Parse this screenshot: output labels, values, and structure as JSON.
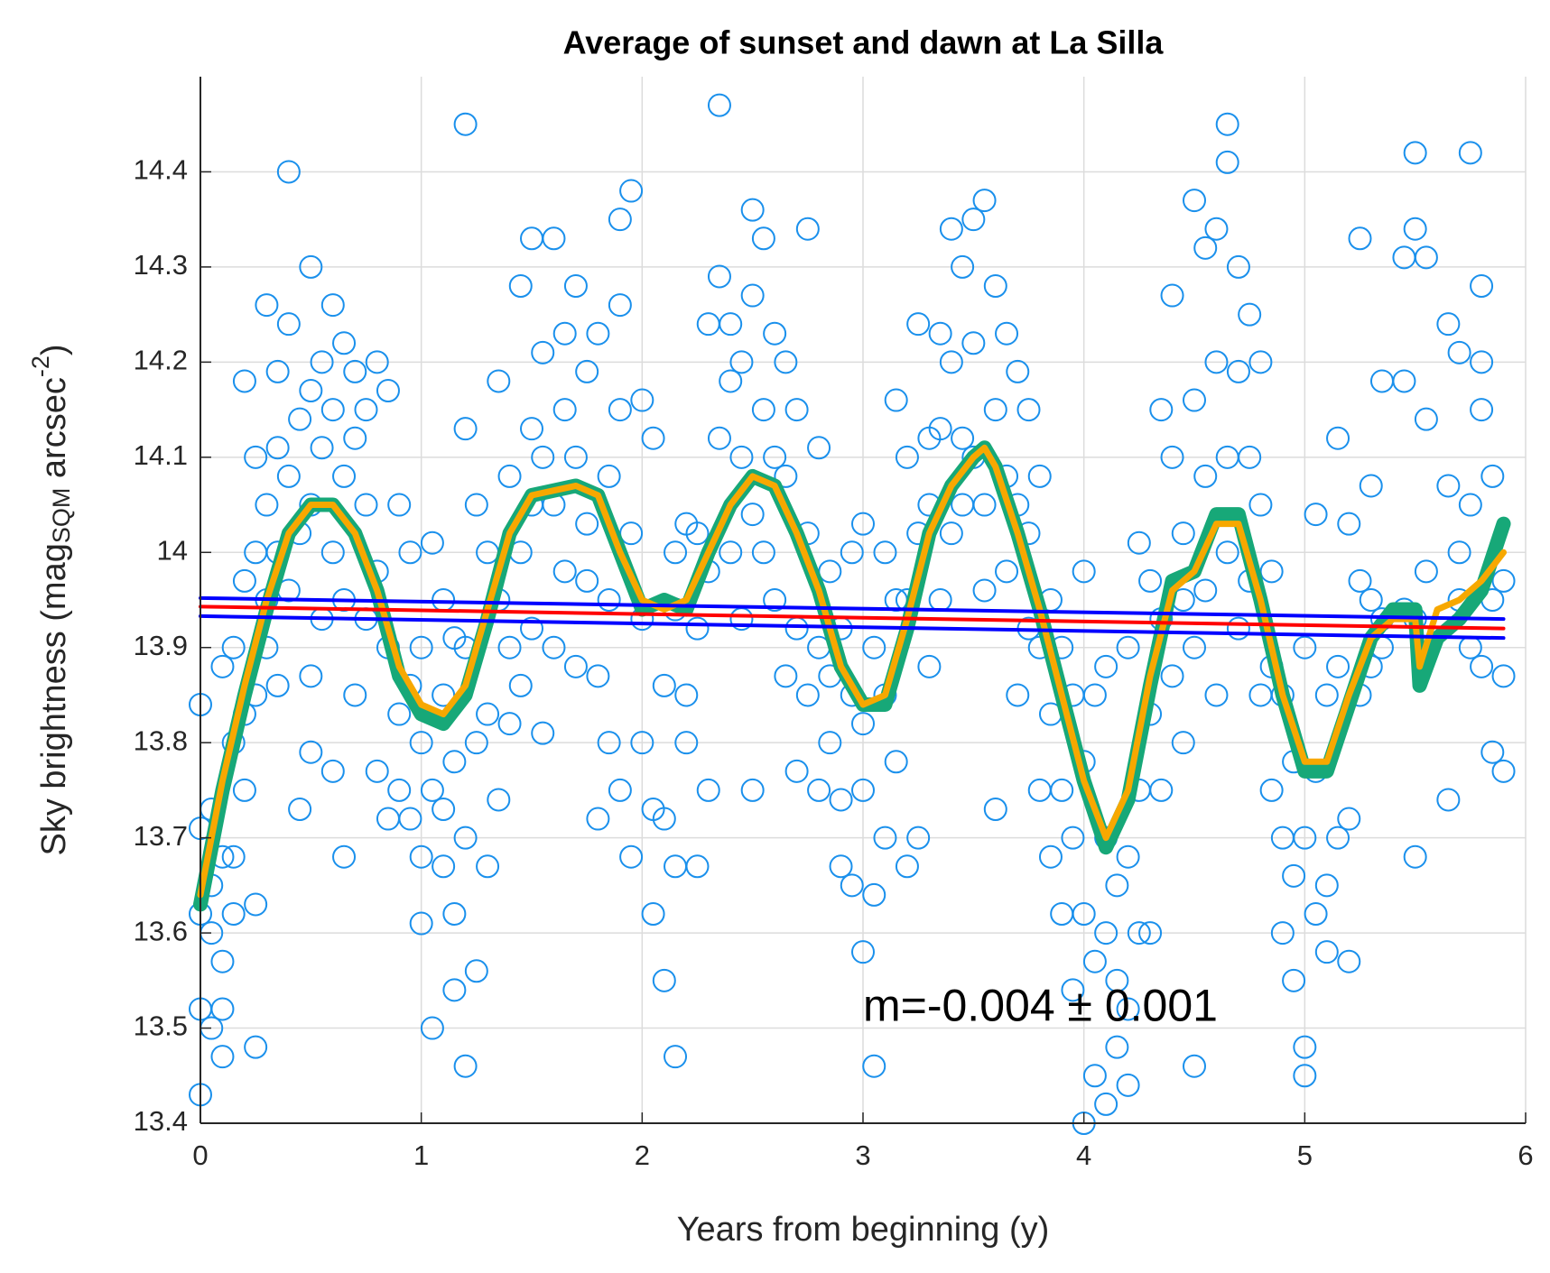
{
  "chart_data": {
    "type": "scatter",
    "title": "Average of sunset and dawn at La Silla",
    "xlabel": "Years from beginning (y)",
    "ylabel": [
      "Sky brightness (mag",
      "SQM",
      " arcsec",
      "-2",
      ")"
    ],
    "annotation": "m=-0.004 ± 0.001",
    "annotation_at": [
      3,
      13.52
    ],
    "xlim": [
      0,
      6
    ],
    "ylim": [
      13.4,
      14.5
    ],
    "xticks": [
      0,
      1,
      2,
      3,
      4,
      5,
      6
    ],
    "yticks": [
      13.4,
      13.5,
      13.6,
      13.7,
      13.8,
      13.9,
      14,
      14.1,
      14.2,
      14.3,
      14.4
    ],
    "grid": true,
    "series": [
      {
        "type": "scatter",
        "color": "#1a90ec",
        "x": [
          0,
          0,
          0,
          0,
          0,
          0.05,
          0.05,
          0.05,
          0.05,
          0.1,
          0.1,
          0.1,
          0.1,
          0.1,
          0.15,
          0.15,
          0.15,
          0.15,
          0.2,
          0.2,
          0.2,
          0.2,
          0.25,
          0.25,
          0.25,
          0.25,
          0.25,
          0.3,
          0.3,
          0.3,
          0.3,
          0.35,
          0.35,
          0.35,
          0.35,
          0.4,
          0.4,
          0.4,
          0.4,
          0.45,
          0.45,
          0.45,
          0.5,
          0.5,
          0.5,
          0.5,
          0.5,
          0.55,
          0.55,
          0.55,
          0.6,
          0.6,
          0.6,
          0.6,
          0.65,
          0.65,
          0.65,
          0.65,
          0.7,
          0.7,
          0.7,
          0.75,
          0.75,
          0.75,
          0.8,
          0.8,
          0.8,
          0.85,
          0.85,
          0.85,
          0.9,
          0.9,
          0.9,
          0.95,
          0.95,
          0.95,
          1,
          1,
          1,
          1,
          1.05,
          1.05,
          1.05,
          1.1,
          1.1,
          1.1,
          1.1,
          1.15,
          1.15,
          1.15,
          1.15,
          1.2,
          1.2,
          1.2,
          1.2,
          1.2,
          1.25,
          1.25,
          1.25,
          1.3,
          1.3,
          1.3,
          1.35,
          1.35,
          1.35,
          1.4,
          1.4,
          1.4,
          1.45,
          1.45,
          1.45,
          1.5,
          1.5,
          1.5,
          1.5,
          1.55,
          1.55,
          1.55,
          1.6,
          1.6,
          1.6,
          1.65,
          1.65,
          1.65,
          1.7,
          1.7,
          1.7,
          1.75,
          1.75,
          1.75,
          1.8,
          1.8,
          1.8,
          1.85,
          1.85,
          1.85,
          1.9,
          1.9,
          1.9,
          1.9,
          1.95,
          1.95,
          1.95,
          2,
          2,
          2,
          2.05,
          2.05,
          2.05,
          2.1,
          2.1,
          2.1,
          2.15,
          2.15,
          2.15,
          2.15,
          2.2,
          2.2,
          2.2,
          2.25,
          2.25,
          2.25,
          2.3,
          2.3,
          2.3,
          2.35,
          2.35,
          2.35,
          2.4,
          2.4,
          2.4,
          2.45,
          2.45,
          2.45,
          2.5,
          2.5,
          2.5,
          2.5,
          2.55,
          2.55,
          2.55,
          2.6,
          2.6,
          2.6,
          2.65,
          2.65,
          2.65,
          2.7,
          2.7,
          2.7,
          2.75,
          2.75,
          2.75,
          2.8,
          2.8,
          2.8,
          2.85,
          2.85,
          2.85,
          2.9,
          2.9,
          2.9,
          2.95,
          2.95,
          2.95,
          3,
          3,
          3,
          3,
          3.05,
          3.05,
          3.05,
          3.1,
          3.1,
          3.1,
          3.15,
          3.15,
          3.15,
          3.2,
          3.2,
          3.2,
          3.25,
          3.25,
          3.25,
          3.3,
          3.3,
          3.3,
          3.35,
          3.35,
          3.35,
          3.4,
          3.4,
          3.4,
          3.45,
          3.45,
          3.45,
          3.5,
          3.5,
          3.5,
          3.55,
          3.55,
          3.55,
          3.6,
          3.6,
          3.6,
          3.65,
          3.65,
          3.65,
          3.7,
          3.7,
          3.7,
          3.75,
          3.75,
          3.75,
          3.8,
          3.8,
          3.8,
          3.85,
          3.85,
          3.85,
          3.9,
          3.9,
          3.9,
          3.95,
          3.95,
          3.95,
          4,
          4,
          4,
          4,
          4.05,
          4.05,
          4.05,
          4.1,
          4.1,
          4.1,
          4.1,
          4.15,
          4.15,
          4.15,
          4.2,
          4.2,
          4.2,
          4.2,
          4.25,
          4.25,
          4.25,
          4.3,
          4.3,
          4.3,
          4.35,
          4.35,
          4.35,
          4.4,
          4.4,
          4.4,
          4.45,
          4.45,
          4.45,
          4.5,
          4.5,
          4.5,
          4.5,
          4.55,
          4.55,
          4.55,
          4.6,
          4.6,
          4.6,
          4.65,
          4.65,
          4.65,
          4.65,
          4.7,
          4.7,
          4.7,
          4.75,
          4.75,
          4.75,
          4.8,
          4.8,
          4.8,
          4.85,
          4.85,
          4.85,
          4.9,
          4.9,
          4.9,
          4.95,
          4.95,
          4.95,
          5,
          5,
          5,
          5,
          5.05,
          5.05,
          5.05,
          5.1,
          5.1,
          5.1,
          5.15,
          5.15,
          5.15,
          5.2,
          5.2,
          5.2,
          5.25,
          5.25,
          5.25,
          5.3,
          5.3,
          5.3,
          5.35,
          5.35,
          5.35,
          5.45,
          5.45,
          5.45,
          5.5,
          5.5,
          5.5,
          5.5,
          5.55,
          5.55,
          5.55,
          5.65,
          5.65,
          5.65,
          5.7,
          5.7,
          5.7,
          5.75,
          5.75,
          5.75,
          5.8,
          5.8,
          5.8,
          5.8,
          5.85,
          5.85,
          5.85,
          5.9,
          5.9,
          5.9
        ],
        "values": [
          13.43,
          13.52,
          13.62,
          13.71,
          13.84,
          13.5,
          13.6,
          13.73,
          13.65,
          13.47,
          13.57,
          13.68,
          13.88,
          13.52,
          13.62,
          13.8,
          13.9,
          13.68,
          13.75,
          13.97,
          14.18,
          13.83,
          13.48,
          13.63,
          13.85,
          14,
          14.1,
          14.26,
          13.9,
          14.05,
          13.95,
          14.11,
          14.19,
          13.86,
          14,
          14.4,
          14.24,
          14.08,
          13.96,
          13.73,
          14.14,
          14.02,
          14.3,
          13.79,
          14.17,
          13.87,
          14.05,
          14.2,
          14.11,
          13.93,
          14.26,
          13.77,
          14.15,
          14,
          14.22,
          13.68,
          14.08,
          13.95,
          14.19,
          14.12,
          13.85,
          14.15,
          13.93,
          14.05,
          14.2,
          13.77,
          13.98,
          14.17,
          13.72,
          13.9,
          13.75,
          14.05,
          13.83,
          14,
          13.72,
          13.86,
          13.61,
          13.8,
          13.9,
          13.68,
          13.5,
          14.01,
          13.75,
          13.67,
          13.85,
          13.95,
          13.73,
          13.54,
          13.62,
          13.78,
          13.91,
          14.45,
          13.46,
          13.7,
          13.9,
          14.13,
          13.56,
          13.8,
          14.05,
          13.67,
          13.83,
          14,
          13.74,
          14.18,
          13.95,
          13.9,
          14.08,
          13.82,
          14,
          14.28,
          13.86,
          14.33,
          14.13,
          13.92,
          14.05,
          14.21,
          13.81,
          14.1,
          14.33,
          14.05,
          13.9,
          14.23,
          14.15,
          13.98,
          14.28,
          14.1,
          13.88,
          14.19,
          13.97,
          14.03,
          14.23,
          13.87,
          13.72,
          13.95,
          14.08,
          13.8,
          14.35,
          14.26,
          13.75,
          14.15,
          14.38,
          14.02,
          13.68,
          14.16,
          13.93,
          13.8,
          13.73,
          14.12,
          13.62,
          13.55,
          13.86,
          13.72,
          13.47,
          13.94,
          14,
          13.67,
          13.8,
          14.03,
          13.85,
          13.67,
          13.92,
          14.02,
          14.24,
          13.98,
          13.75,
          14.47,
          14.29,
          14.12,
          14.24,
          14,
          14.18,
          14.2,
          13.93,
          14.1,
          14.36,
          14.27,
          14.04,
          13.75,
          14.33,
          14.15,
          14,
          14.23,
          13.95,
          14.1,
          14.08,
          13.87,
          14.2,
          14.15,
          13.77,
          13.92,
          14.34,
          14.02,
          13.85,
          14.11,
          13.9,
          13.75,
          13.98,
          13.87,
          13.8,
          13.74,
          13.92,
          13.67,
          13.85,
          13.65,
          14,
          13.58,
          13.82,
          14.03,
          13.75,
          13.46,
          13.64,
          13.9,
          13.7,
          13.85,
          14,
          14.16,
          13.78,
          13.95,
          13.67,
          13.95,
          14.1,
          14.24,
          13.7,
          14.02,
          14.12,
          13.88,
          14.05,
          14.23,
          13.95,
          14.13,
          14.34,
          14.02,
          14.2,
          14.3,
          14.12,
          14.05,
          14.35,
          14.22,
          14.1,
          14.37,
          14.05,
          13.96,
          14.28,
          14.15,
          13.73,
          14.23,
          13.98,
          14.08,
          14.19,
          13.85,
          14.05,
          14.15,
          13.92,
          14.02,
          14.08,
          13.75,
          13.9,
          13.83,
          13.95,
          13.68,
          13.75,
          13.62,
          13.9,
          13.54,
          13.85,
          13.7,
          13.4,
          13.62,
          13.78,
          13.98,
          13.45,
          13.57,
          13.85,
          13.42,
          13.7,
          13.6,
          13.88,
          13.48,
          13.55,
          13.65,
          13.44,
          13.52,
          13.68,
          13.9,
          13.6,
          13.75,
          14.01,
          13.6,
          13.83,
          13.97,
          14.15,
          13.93,
          13.75,
          14.27,
          13.87,
          14.1,
          14.02,
          13.95,
          13.8,
          14.37,
          13.46,
          14.16,
          13.9,
          14.32,
          14.08,
          13.96,
          14.34,
          13.85,
          14.2,
          14.45,
          14.41,
          14.1,
          14,
          14.3,
          14.19,
          13.92,
          14.25,
          14.1,
          13.97,
          14.2,
          14.05,
          13.85,
          13.88,
          13.75,
          13.98,
          13.7,
          13.6,
          13.85,
          13.66,
          13.55,
          13.78,
          13.45,
          13.48,
          13.7,
          13.9,
          14.04,
          13.62,
          13.77,
          13.58,
          13.65,
          13.85,
          14.12,
          13.7,
          13.88,
          13.57,
          13.72,
          14.03,
          14.33,
          13.85,
          13.97,
          14.07,
          13.88,
          13.95,
          14.18,
          13.93,
          13.9,
          14.31,
          14.18,
          13.94,
          14.42,
          14.34,
          13.68,
          13.93,
          14.31,
          14.14,
          13.98,
          14.24,
          13.74,
          14.07,
          14.21,
          14,
          13.95,
          14.42,
          14.05,
          13.9,
          14.28,
          14.2,
          14.15,
          13.88,
          14.08,
          13.79,
          13.95,
          13.77,
          13.87,
          13.97
        ]
      },
      {
        "type": "line",
        "color": "#17a878",
        "width": 16,
        "x": [
          0,
          0.1,
          0.2,
          0.3,
          0.4,
          0.5,
          0.6,
          0.7,
          0.8,
          0.9,
          1,
          1.1,
          1.2,
          1.3,
          1.4,
          1.5,
          1.6,
          1.7,
          1.8,
          1.9,
          2,
          2.1,
          2.2,
          2.3,
          2.4,
          2.5,
          2.6,
          2.7,
          2.8,
          2.9,
          3,
          3.1,
          3.2,
          3.3,
          3.4,
          3.5,
          3.55,
          3.6,
          3.7,
          3.8,
          3.9,
          4,
          4.1,
          4.2,
          4.3,
          4.4,
          4.5,
          4.6,
          4.7,
          4.8,
          4.9,
          5,
          5.1,
          5.2,
          5.3,
          5.4,
          5.5,
          5.52,
          5.6,
          5.7,
          5.8,
          5.9
        ],
        "values": [
          13.63,
          13.75,
          13.85,
          13.94,
          14.02,
          14.05,
          14.05,
          14.02,
          13.96,
          13.87,
          13.83,
          13.82,
          13.85,
          13.93,
          14.02,
          14.06,
          14.065,
          14.07,
          14.06,
          14,
          13.94,
          13.95,
          13.94,
          14,
          14.05,
          14.08,
          14.07,
          14.02,
          13.96,
          13.88,
          13.84,
          13.84,
          13.92,
          14.02,
          14.07,
          14.1,
          14.11,
          14.09,
          14.02,
          13.94,
          13.85,
          13.76,
          13.69,
          13.74,
          13.86,
          13.97,
          13.98,
          14.04,
          14.04,
          13.95,
          13.85,
          13.77,
          13.77,
          13.84,
          13.91,
          13.94,
          13.94,
          13.86,
          13.91,
          13.93,
          13.96,
          14.03
        ]
      },
      {
        "type": "line",
        "color": "#f7a800",
        "width": 7,
        "x": [
          0,
          0.1,
          0.2,
          0.3,
          0.4,
          0.5,
          0.6,
          0.7,
          0.8,
          0.9,
          1,
          1.1,
          1.2,
          1.3,
          1.4,
          1.5,
          1.6,
          1.7,
          1.8,
          1.9,
          2,
          2.1,
          2.2,
          2.3,
          2.4,
          2.5,
          2.6,
          2.7,
          2.8,
          2.9,
          3,
          3.1,
          3.2,
          3.3,
          3.4,
          3.5,
          3.55,
          3.6,
          3.7,
          3.8,
          3.9,
          4,
          4.1,
          4.2,
          4.3,
          4.4,
          4.5,
          4.6,
          4.7,
          4.8,
          4.9,
          5,
          5.1,
          5.2,
          5.3,
          5.4,
          5.5,
          5.52,
          5.6,
          5.7,
          5.8,
          5.9
        ],
        "values": [
          13.64,
          13.76,
          13.86,
          13.95,
          14.02,
          14.05,
          14.05,
          14.02,
          13.96,
          13.88,
          13.84,
          13.83,
          13.86,
          13.94,
          14.02,
          14.06,
          14.065,
          14.07,
          14.06,
          14,
          13.95,
          13.94,
          13.95,
          14,
          14.05,
          14.08,
          14.07,
          14.02,
          13.96,
          13.88,
          13.84,
          13.85,
          13.93,
          14.02,
          14.07,
          14.1,
          14.11,
          14.09,
          14.02,
          13.94,
          13.85,
          13.76,
          13.7,
          13.75,
          13.87,
          13.96,
          13.98,
          14.03,
          14.03,
          13.95,
          13.85,
          13.78,
          13.78,
          13.85,
          13.91,
          13.93,
          13.93,
          13.88,
          13.94,
          13.95,
          13.97,
          14
        ]
      },
      {
        "type": "line",
        "color": "#0000ff",
        "width": 4,
        "x": [
          0,
          5.9
        ],
        "values": [
          13.952,
          13.93
        ]
      },
      {
        "type": "line",
        "color": "#0000ff",
        "width": 4,
        "x": [
          0,
          5.9
        ],
        "values": [
          13.933,
          13.91
        ]
      },
      {
        "type": "line",
        "color": "#ff0000",
        "width": 4,
        "x": [
          0,
          5.9
        ],
        "values": [
          13.943,
          13.92
        ]
      }
    ]
  }
}
